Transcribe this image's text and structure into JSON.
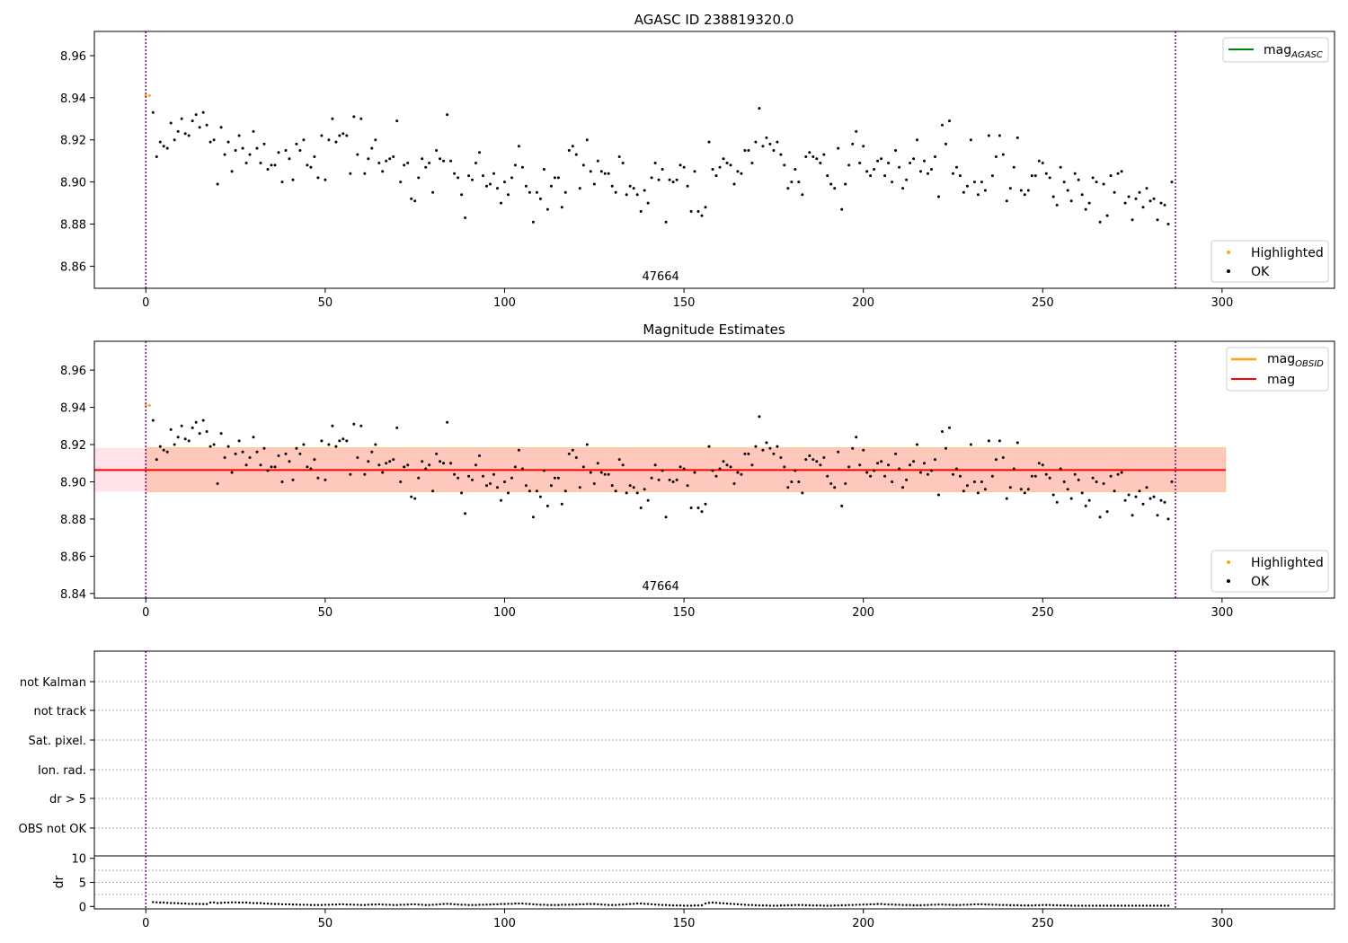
{
  "chart_data": [
    {
      "type": "scatter",
      "title": "AGASC ID 238819320.0",
      "xlabel": "",
      "ylabel": "",
      "xlim": [
        -14.35,
        331.35
      ],
      "ylim": [
        8.8495,
        8.9715
      ],
      "x_ticks": [
        0,
        50,
        100,
        150,
        200,
        250,
        300
      ],
      "y_ticks": [
        8.86,
        8.88,
        8.9,
        8.92,
        8.94,
        8.96
      ],
      "y_tick_labels": [
        "8.86",
        "8.88",
        "8.90",
        "8.92",
        "8.94",
        "8.96"
      ],
      "obsid_boundaries": [
        0,
        287
      ],
      "obsid_label": {
        "text": "47664",
        "x": 143.5
      },
      "legend_upper": {
        "position": "upper-right",
        "entries": [
          {
            "label": "mag",
            "sub": "AGASC",
            "color": "#008000",
            "marker": "line"
          }
        ]
      },
      "legend_lower": {
        "position": "lower-right",
        "entries": [
          {
            "label": "Highlighted",
            "color": "#ffa500",
            "marker": "dot"
          },
          {
            "label": "OK",
            "color": "#000000",
            "marker": "dot"
          }
        ]
      },
      "series": [
        {
          "name": "Highlighted",
          "color": "#ffa500",
          "x": [
            0,
            1
          ],
          "y": [
            8.941,
            8.941
          ]
        }
      ]
    },
    {
      "type": "scatter",
      "title": "Magnitude Estimates",
      "xlabel": "",
      "ylabel": "",
      "xlim": [
        -14.35,
        331.35
      ],
      "ylim": [
        8.8375,
        8.9755
      ],
      "x_ticks": [
        0,
        50,
        100,
        150,
        200,
        250,
        300
      ],
      "y_ticks": [
        8.84,
        8.86,
        8.88,
        8.9,
        8.92,
        8.94,
        8.96
      ],
      "y_tick_labels": [
        "8.84",
        "8.86",
        "8.88",
        "8.90",
        "8.92",
        "8.94",
        "8.96"
      ],
      "obsid_boundaries": [
        0,
        287
      ],
      "obsid_label": {
        "text": "47664",
        "x": 143.5
      },
      "mean_line": {
        "name": "mag",
        "value": 8.9063,
        "color": "#ff0000",
        "x_range": [
          -14.35,
          301
        ]
      },
      "band_outer": {
        "y_range": [
          8.8947,
          8.9183
        ],
        "x_range": [
          -14.35,
          301
        ],
        "color": "#ffc0cb"
      },
      "band_inner": {
        "y_range": [
          8.8947,
          8.9183
        ],
        "x_range": [
          0,
          301
        ],
        "color": "#ffa07a"
      },
      "legend_upper": {
        "position": "upper-right",
        "entries": [
          {
            "label": "mag",
            "sub": "OBSID",
            "color": "#ffa500",
            "marker": "line"
          },
          {
            "label": "mag",
            "sub": "",
            "color": "#ff0000",
            "marker": "line"
          }
        ]
      },
      "legend_lower": {
        "position": "lower-right",
        "entries": [
          {
            "label": "Highlighted",
            "color": "#ffa500",
            "marker": "dot"
          },
          {
            "label": "OK",
            "color": "#000000",
            "marker": "dot"
          }
        ]
      },
      "series": [
        {
          "name": "Highlighted",
          "color": "#ffa500",
          "x": [
            0,
            1
          ],
          "y": [
            8.941,
            8.941
          ]
        }
      ]
    },
    {
      "type": "scatter",
      "title": "",
      "xlim": [
        -14.35,
        331.35
      ],
      "obsid_boundaries": [
        0,
        287
      ],
      "flag_categories": [
        "not Kalman",
        "not track",
        "Sat. pixel.",
        "Ion. rad.",
        "dr > 5",
        "OBS not OK"
      ],
      "flag_points": []
    },
    {
      "type": "scatter",
      "title": "",
      "xlabel": "",
      "ylabel": "dr",
      "xlim": [
        -14.35,
        331.35
      ],
      "ylim": [
        -0.5,
        10.5
      ],
      "x_ticks": [
        0,
        50,
        100,
        150,
        200,
        250,
        300
      ],
      "x_tick_labels": [
        "0",
        "50",
        "100",
        "150",
        "200",
        "250",
        "300"
      ],
      "y_ticks": [
        0,
        5,
        10
      ],
      "y_tick_labels": [
        "0",
        "5",
        "10"
      ],
      "dr_threshold": 5,
      "obsid_boundaries": [
        0,
        287
      ]
    }
  ],
  "observations": {
    "x_start": 2,
    "mag": [
      8.933,
      8.912,
      8.919,
      8.917,
      8.916,
      8.928,
      8.92,
      8.924,
      8.93,
      8.923,
      8.922,
      8.929,
      8.932,
      8.926,
      8.933,
      8.927,
      8.919,
      8.92,
      8.899,
      8.926,
      8.913,
      8.919,
      8.905,
      8.915,
      8.922,
      8.916,
      8.909,
      8.913,
      8.924,
      8.916,
      8.909,
      8.918,
      8.906,
      8.908,
      8.908,
      8.914,
      8.9,
      8.915,
      8.911,
      8.901,
      8.918,
      8.915,
      8.92,
      8.908,
      8.907,
      8.912,
      8.902,
      8.922,
      8.901,
      8.92,
      8.93,
      8.919,
      8.922,
      8.923,
      8.922,
      8.904,
      8.931,
      8.913,
      8.93,
      8.904,
      8.911,
      8.916,
      8.92,
      8.909,
      8.905,
      8.91,
      8.911,
      8.912,
      8.929,
      8.9,
      8.908,
      8.909,
      8.892,
      8.891,
      8.902,
      8.911,
      8.907,
      8.909,
      8.895,
      8.915,
      8.911,
      8.91,
      8.932,
      8.91,
      8.904,
      8.902,
      8.894,
      8.883,
      8.903,
      8.901,
      8.909,
      8.914,
      8.903,
      8.898,
      8.899,
      8.904,
      8.897,
      8.89,
      8.9,
      8.894,
      8.902,
      8.908,
      8.917,
      8.907,
      8.898,
      8.895,
      8.881,
      8.895,
      8.892,
      8.906,
      8.887,
      8.898,
      8.902,
      8.902,
      8.888,
      8.895,
      8.915,
      8.917,
      8.913,
      8.897,
      8.908,
      8.92,
      8.905,
      8.899,
      8.91,
      8.905,
      8.904,
      8.904,
      8.898,
      8.895,
      8.912,
      8.909,
      8.894,
      8.898,
      8.897,
      8.894,
      8.886,
      8.896,
      8.89,
      8.902,
      8.909,
      8.901,
      8.906,
      8.881,
      8.901,
      8.9,
      8.901,
      8.908,
      8.907,
      8.898,
      8.886,
      8.905,
      8.886,
      8.884,
      8.888,
      8.919,
      8.906,
      8.903,
      8.907,
      8.911,
      8.909,
      8.908,
      8.899,
      8.905,
      8.904,
      8.915,
      8.915,
      8.909,
      8.919,
      8.935,
      8.917,
      8.921,
      8.918,
      8.915,
      8.919,
      8.913,
      8.908,
      8.897,
      8.9,
      8.906,
      8.9,
      8.894,
      8.912,
      8.914,
      8.912,
      8.911,
      8.909,
      8.913,
      8.903,
      8.899,
      8.897,
      8.916,
      8.887,
      8.899,
      8.908,
      8.918,
      8.924,
      8.909,
      8.917,
      8.905,
      8.903,
      8.906,
      8.91,
      8.911,
      8.903,
      8.909,
      8.9,
      8.915,
      8.907,
      8.897,
      8.901,
      8.909,
      8.911,
      8.92,
      8.905,
      8.91,
      8.904,
      8.906,
      8.912,
      8.893,
      8.927,
      8.918,
      8.929,
      8.904,
      8.907,
      8.903,
      8.895,
      8.898,
      8.92,
      8.9,
      8.894,
      8.9,
      8.896,
      8.922,
      8.903,
      8.912,
      8.922,
      8.913,
      8.891,
      8.897,
      8.907,
      8.921,
      8.896,
      8.894,
      8.896,
      8.903,
      8.903,
      8.91,
      8.909,
      8.904,
      8.902,
      8.893,
      8.889,
      8.907,
      8.9,
      8.896,
      8.891,
      8.904,
      8.901,
      8.894,
      8.887,
      8.89,
      8.902,
      8.9,
      8.881,
      8.899,
      8.884,
      8.903,
      8.895,
      8.904,
      8.905,
      8.89,
      8.893,
      8.882,
      8.892,
      8.895,
      8.888,
      8.897,
      8.891,
      8.892,
      8.882,
      8.89,
      8.889,
      8.88,
      8.9
    ],
    "dr": [
      0.9,
      0.85,
      0.8,
      0.8,
      0.75,
      0.7,
      0.7,
      0.65,
      0.6,
      0.6,
      0.55,
      0.55,
      0.55,
      0.5,
      0.5,
      0.5,
      0.8,
      0.85,
      0.7,
      0.75,
      0.8,
      0.8,
      0.85,
      0.85,
      0.8,
      0.8,
      0.8,
      0.75,
      0.7,
      0.7,
      0.7,
      0.6,
      0.6,
      0.55,
      0.5,
      0.5,
      0.45,
      0.45,
      0.45,
      0.4,
      0.4,
      0.35,
      0.35,
      0.35,
      0.3,
      0.3,
      0.3,
      0.3,
      0.35,
      0.35,
      0.4,
      0.4,
      0.45,
      0.45,
      0.4,
      0.4,
      0.35,
      0.35,
      0.3,
      0.3,
      0.35,
      0.4,
      0.4,
      0.45,
      0.4,
      0.35,
      0.35,
      0.3,
      0.3,
      0.35,
      0.35,
      0.4,
      0.45,
      0.45,
      0.4,
      0.35,
      0.3,
      0.3,
      0.35,
      0.4,
      0.45,
      0.5,
      0.55,
      0.5,
      0.45,
      0.4,
      0.35,
      0.35,
      0.3,
      0.3,
      0.3,
      0.35,
      0.35,
      0.4,
      0.4,
      0.45,
      0.45,
      0.5,
      0.5,
      0.55,
      0.55,
      0.6,
      0.6,
      0.6,
      0.55,
      0.5,
      0.45,
      0.4,
      0.35,
      0.35,
      0.3,
      0.3,
      0.3,
      0.3,
      0.35,
      0.35,
      0.35,
      0.4,
      0.4,
      0.45,
      0.45,
      0.5,
      0.5,
      0.5,
      0.45,
      0.4,
      0.35,
      0.3,
      0.3,
      0.3,
      0.35,
      0.4,
      0.45,
      0.5,
      0.55,
      0.6,
      0.6,
      0.55,
      0.5,
      0.45,
      0.4,
      0.35,
      0.3,
      0.3,
      0.25,
      0.2,
      0.2,
      0.2,
      0.15,
      0.15,
      0.15,
      0.2,
      0.2,
      0.25,
      0.6,
      0.75,
      0.8,
      0.75,
      0.7,
      0.65,
      0.6,
      0.55,
      0.5,
      0.45,
      0.4,
      0.35,
      0.3,
      0.3,
      0.25,
      0.2,
      0.2,
      0.2,
      0.15,
      0.15,
      0.15,
      0.2,
      0.2,
      0.25,
      0.25,
      0.3,
      0.3,
      0.3,
      0.25,
      0.25,
      0.2,
      0.2,
      0.2,
      0.15,
      0.15,
      0.15,
      0.2,
      0.2,
      0.25,
      0.25,
      0.3,
      0.3,
      0.35,
      0.35,
      0.4,
      0.4,
      0.45,
      0.45,
      0.5,
      0.5,
      0.45,
      0.4,
      0.4,
      0.35,
      0.35,
      0.3,
      0.3,
      0.3,
      0.25,
      0.25,
      0.25,
      0.3,
      0.3,
      0.35,
      0.35,
      0.4,
      0.4,
      0.35,
      0.35,
      0.3,
      0.3,
      0.3,
      0.35,
      0.35,
      0.4,
      0.45,
      0.45,
      0.45,
      0.4,
      0.4,
      0.35,
      0.35,
      0.3,
      0.3,
      0.3,
      0.25,
      0.25,
      0.25,
      0.2,
      0.2,
      0.2,
      0.2,
      0.25,
      0.25,
      0.3,
      0.3,
      0.3,
      0.25,
      0.25,
      0.2,
      0.2,
      0.2,
      0.15,
      0.15,
      0.15,
      0.15,
      0.15,
      0.15,
      0.15,
      0.15,
      0.15,
      0.15,
      0.15,
      0.15,
      0.15,
      0.15,
      0.15,
      0.15,
      0.15,
      0.15,
      0.15,
      0.15,
      0.15,
      0.15,
      0.15,
      0.15,
      0.15,
      0.15,
      0.15,
      0.15
    ]
  }
}
